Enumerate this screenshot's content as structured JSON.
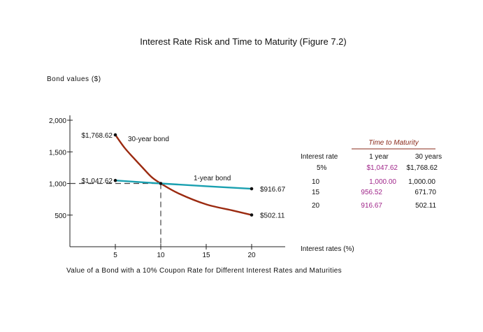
{
  "chart_data": {
    "type": "line",
    "title": "Interest Rate Risk and Time to Maturity (Figure 7.2)",
    "subtitle": "Value of a Bond with a 10% Coupon Rate for Different Interest Rates and Maturities",
    "ylabel": "Bond values ($)",
    "xlabel": "Interest rates (%)",
    "xlim": [
      0,
      22
    ],
    "ylim": [
      0,
      2000
    ],
    "x_ticks": [
      5,
      10,
      15,
      20
    ],
    "y_ticks": [
      500,
      1000,
      1500,
      2000
    ],
    "x_tick_labels": [
      "5",
      "10",
      "15",
      "20"
    ],
    "y_tick_labels": [
      "500",
      "1,000",
      "1,500",
      "2,000"
    ],
    "grid": false,
    "reference_point": {
      "x": 10,
      "y": 1000
    },
    "series": [
      {
        "name": "30-year bond",
        "color": "#9b2a10",
        "x": [
          5,
          6,
          7,
          8,
          9,
          10,
          12,
          15,
          18,
          20
        ],
        "y": [
          1768.62,
          1567,
          1405,
          1250,
          1100,
          1000,
          840,
          670,
          570,
          502.11
        ],
        "endpoint_labels": [
          "$1,768.62",
          "$502.11"
        ]
      },
      {
        "name": "1-year bond",
        "color": "#1aa0b0",
        "x": [
          5,
          10,
          15,
          20
        ],
        "y": [
          1047.62,
          1000,
          956.52,
          916.67
        ],
        "endpoint_labels": [
          "$1,047.62",
          "$916.67"
        ]
      }
    ],
    "annotations": [
      "30-year bond",
      "1-year bond"
    ]
  },
  "table": {
    "title": "Time to Maturity",
    "headers": [
      "Interest rate",
      "1 year",
      "30 years"
    ],
    "rows": [
      [
        "5%",
        "$1,047.62",
        "$1,768.62"
      ],
      [
        "10",
        "1,000.00",
        "1,000.00"
      ],
      [
        "15",
        "956.52",
        "671.70"
      ],
      [
        "20",
        "916.67",
        "502.11"
      ]
    ],
    "title_color": "#8a2a1a",
    "rule_color": "#8a2a1a",
    "highlight_color": "#a0268a"
  }
}
